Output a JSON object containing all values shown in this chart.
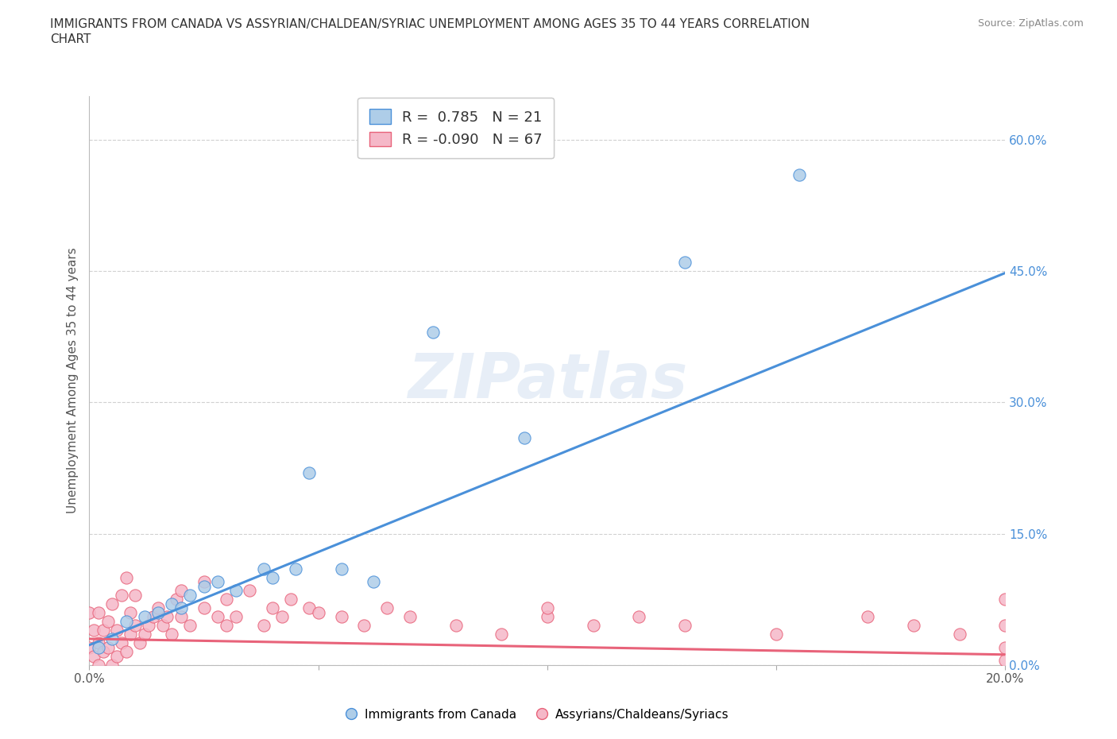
{
  "title_line1": "IMMIGRANTS FROM CANADA VS ASSYRIAN/CHALDEAN/SYRIAC UNEMPLOYMENT AMONG AGES 35 TO 44 YEARS CORRELATION",
  "title_line2": "CHART",
  "source": "Source: ZipAtlas.com",
  "ylabel": "Unemployment Among Ages 35 to 44 years",
  "xlim": [
    0.0,
    0.2
  ],
  "ylim": [
    0.0,
    0.65
  ],
  "yticks": [
    0.0,
    0.15,
    0.3,
    0.45,
    0.6
  ],
  "ytick_labels": [
    "0.0%",
    "15.0%",
    "30.0%",
    "45.0%",
    "60.0%"
  ],
  "xticks": [
    0.0,
    0.05,
    0.1,
    0.15,
    0.2
  ],
  "xtick_labels": [
    "0.0%",
    "",
    "",
    "",
    "20.0%"
  ],
  "R_canada": 0.785,
  "N_canada": 21,
  "R_assyrian": -0.09,
  "N_assyrian": 67,
  "canada_color": "#aecde8",
  "assyrian_color": "#f5b8c8",
  "canada_line_color": "#4a90d9",
  "assyrian_line_color": "#e8637a",
  "watermark": "ZIPatlas",
  "background_color": "#ffffff",
  "grid_color": "#cccccc",
  "canada_line_x": [
    0.0,
    0.2
  ],
  "canada_line_y": [
    0.023,
    0.448
  ],
  "assyrian_line_x": [
    0.0,
    0.2
  ],
  "assyrian_line_y": [
    0.03,
    0.012
  ],
  "canada_points_x": [
    0.002,
    0.005,
    0.008,
    0.012,
    0.015,
    0.018,
    0.02,
    0.022,
    0.025,
    0.028,
    0.032,
    0.038,
    0.04,
    0.045,
    0.048,
    0.055,
    0.062,
    0.075,
    0.095,
    0.13,
    0.155
  ],
  "canada_points_y": [
    0.02,
    0.03,
    0.05,
    0.055,
    0.06,
    0.07,
    0.065,
    0.08,
    0.09,
    0.095,
    0.085,
    0.11,
    0.1,
    0.11,
    0.22,
    0.11,
    0.095,
    0.38,
    0.26,
    0.46,
    0.56
  ],
  "assyrian_points_x": [
    0.0,
    0.0,
    0.001,
    0.001,
    0.002,
    0.002,
    0.002,
    0.003,
    0.003,
    0.004,
    0.004,
    0.005,
    0.005,
    0.006,
    0.006,
    0.007,
    0.007,
    0.008,
    0.008,
    0.009,
    0.009,
    0.01,
    0.01,
    0.011,
    0.012,
    0.013,
    0.014,
    0.015,
    0.016,
    0.017,
    0.018,
    0.019,
    0.02,
    0.02,
    0.022,
    0.025,
    0.025,
    0.028,
    0.03,
    0.03,
    0.032,
    0.035,
    0.038,
    0.04,
    0.042,
    0.044,
    0.048,
    0.05,
    0.055,
    0.06,
    0.065,
    0.07,
    0.08,
    0.09,
    0.1,
    0.1,
    0.11,
    0.12,
    0.13,
    0.15,
    0.17,
    0.18,
    0.19,
    0.2,
    0.2,
    0.2,
    0.2
  ],
  "assyrian_points_y": [
    0.02,
    0.06,
    0.01,
    0.04,
    0.0,
    0.025,
    0.06,
    0.015,
    0.04,
    0.02,
    0.05,
    0.0,
    0.07,
    0.01,
    0.04,
    0.025,
    0.08,
    0.015,
    0.1,
    0.035,
    0.06,
    0.045,
    0.08,
    0.025,
    0.035,
    0.045,
    0.055,
    0.065,
    0.045,
    0.055,
    0.035,
    0.075,
    0.055,
    0.085,
    0.045,
    0.065,
    0.095,
    0.055,
    0.045,
    0.075,
    0.055,
    0.085,
    0.045,
    0.065,
    0.055,
    0.075,
    0.065,
    0.06,
    0.055,
    0.045,
    0.065,
    0.055,
    0.045,
    0.035,
    0.055,
    0.065,
    0.045,
    0.055,
    0.045,
    0.035,
    0.055,
    0.045,
    0.035,
    0.075,
    0.045,
    0.02,
    0.005
  ]
}
